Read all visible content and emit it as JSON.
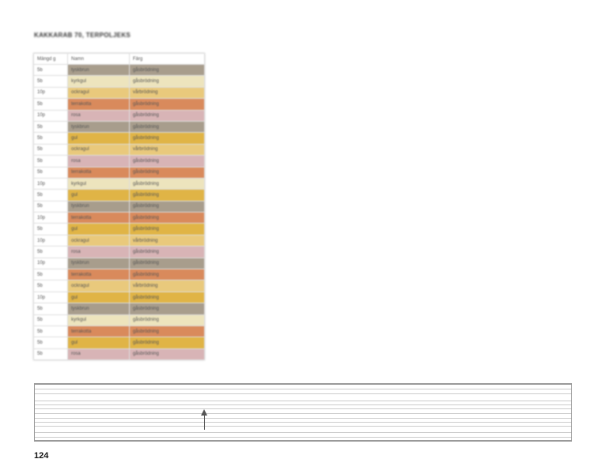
{
  "title": "KAKKARAB 70, TERPOLJEKS",
  "table": {
    "headers": [
      "Mängd g",
      "Namn",
      "Färg"
    ],
    "rows": [
      {
        "qty": "5b",
        "name": "tyskbrun",
        "value": "gåsbrödning",
        "color": "#a89d8c"
      },
      {
        "qty": "5b",
        "name": "kyrkgul",
        "value": "gåsbrödning",
        "color": "#ede4bd"
      },
      {
        "qty": "10p",
        "name": "ockragul",
        "value": "vårbrödning",
        "color": "#e9c97c"
      },
      {
        "qty": "5b",
        "name": "terrakotta",
        "value": "gåsbrödning",
        "color": "#d98a5c"
      },
      {
        "qty": "10p",
        "name": "rosa",
        "value": "gåsbrödning",
        "color": "#d8b4b6"
      },
      {
        "qty": "5b",
        "name": "tyskbrun",
        "value": "gåsbrödning",
        "color": "#a89d8c"
      },
      {
        "qty": "5b",
        "name": "gul",
        "value": "gåsbrödning",
        "color": "#e0b446"
      },
      {
        "qty": "5b",
        "name": "ockragul",
        "value": "vårbrödning",
        "color": "#e9c97c"
      },
      {
        "qty": "5b",
        "name": "rosa",
        "value": "gåsbrödning",
        "color": "#d8b4b6"
      },
      {
        "qty": "5b",
        "name": "terrakotta",
        "value": "gåsbrödning",
        "color": "#d98a5c"
      },
      {
        "qty": "10p",
        "name": "kyrkgul",
        "value": "gåsbrödning",
        "color": "#ede4bd"
      },
      {
        "qty": "5b",
        "name": "gul",
        "value": "gåsbrödning",
        "color": "#e0b446"
      },
      {
        "qty": "5b",
        "name": "tyskbrun",
        "value": "gåsbrödning",
        "color": "#a89d8c"
      },
      {
        "qty": "10p",
        "name": "terrakotta",
        "value": "gåsbrödning",
        "color": "#d98a5c"
      },
      {
        "qty": "5b",
        "name": "gul",
        "value": "gåsbrödning",
        "color": "#e0b446"
      },
      {
        "qty": "10p",
        "name": "ockragul",
        "value": "vårbrödning",
        "color": "#e9c97c"
      },
      {
        "qty": "5b",
        "name": "rosa",
        "value": "gåsbrödning",
        "color": "#d8b4b6"
      },
      {
        "qty": "10p",
        "name": "tyskbrun",
        "value": "gåsbrödning",
        "color": "#a89d8c"
      },
      {
        "qty": "5b",
        "name": "terrakotta",
        "value": "gåsbrödning",
        "color": "#d98a5c"
      },
      {
        "qty": "5b",
        "name": "ockragul",
        "value": "vårbrödning",
        "color": "#e9c97c"
      },
      {
        "qty": "10p",
        "name": "gul",
        "value": "gåsbrödning",
        "color": "#e0b446"
      },
      {
        "qty": "5b",
        "name": "tyskbrun",
        "value": "gåsbrödning",
        "color": "#a89d8c"
      },
      {
        "qty": "5b",
        "name": "kyrkgul",
        "value": "gåsbrödning",
        "color": "#ede4bd"
      },
      {
        "qty": "5b",
        "name": "terrakotta",
        "value": "gåsbrödning",
        "color": "#d98a5c"
      },
      {
        "qty": "5b",
        "name": "gul",
        "value": "gåsbrödning",
        "color": "#e0b446"
      },
      {
        "qty": "5b",
        "name": "rosa",
        "value": "gåsbrödning",
        "color": "#d8b4b6"
      }
    ]
  },
  "page_number": "124"
}
